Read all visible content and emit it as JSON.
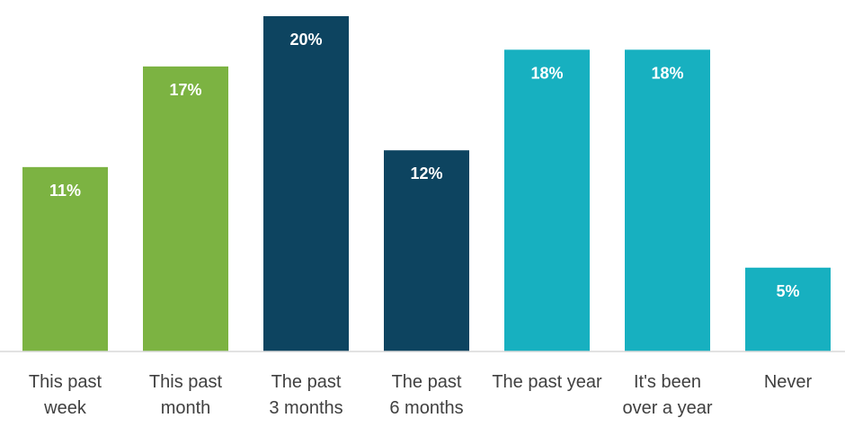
{
  "chart_data": {
    "type": "bar",
    "title": "",
    "xlabel": "",
    "ylabel": "",
    "ylim": [
      0,
      20
    ],
    "grid": false,
    "legend": "none",
    "categories": [
      [
        "This past",
        "week"
      ],
      [
        "This past",
        "month"
      ],
      [
        "The past",
        "3 months"
      ],
      [
        "The past",
        "6 months"
      ],
      [
        "The past year"
      ],
      [
        "It's been",
        "over a year"
      ],
      [
        "Never"
      ]
    ],
    "values": [
      11,
      17,
      20,
      12,
      18,
      18,
      5
    ],
    "value_labels": [
      "11%",
      "17%",
      "20%",
      "12%",
      "18%",
      "18%",
      "5%"
    ],
    "colors": [
      "#7cb342",
      "#7cb342",
      "#0d4460",
      "#0d4460",
      "#17b0c0",
      "#17b0c0",
      "#17b0c0"
    ]
  }
}
